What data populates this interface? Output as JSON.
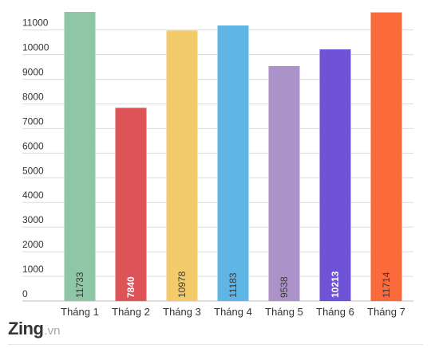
{
  "chart_data": {
    "type": "bar",
    "categories": [
      "Tháng 1",
      "Tháng 2",
      "Tháng 3",
      "Tháng 4",
      "Tháng 5",
      "Tháng 6",
      "Tháng 7"
    ],
    "values": [
      11733,
      7840,
      10978,
      11183,
      9538,
      10213,
      11714
    ],
    "data_labels": [
      "11733",
      "7840",
      "10978",
      "11183",
      "9538",
      "10213",
      "11714"
    ],
    "colors": [
      "#8ec6a6",
      "#dd5357",
      "#f3cb6b",
      "#5fb5e6",
      "#ab93c9",
      "#6f53d6",
      "#fb6a3a"
    ],
    "data_label_colors": [
      "#3a3a3a",
      "#ffffff",
      "#3a3a3a",
      "#3a3a3a",
      "#3a3a3a",
      "#ffffff",
      "#3a3a3a"
    ],
    "yticks": [
      0,
      1000,
      2000,
      3000,
      4000,
      5000,
      6000,
      7000,
      8000,
      9000,
      10000,
      11000
    ],
    "ylim": [
      0,
      11700
    ],
    "grid": true,
    "title": "",
    "xlabel": "",
    "ylabel": ""
  },
  "brand": {
    "name": "Zing",
    "suffix": ".vn"
  }
}
